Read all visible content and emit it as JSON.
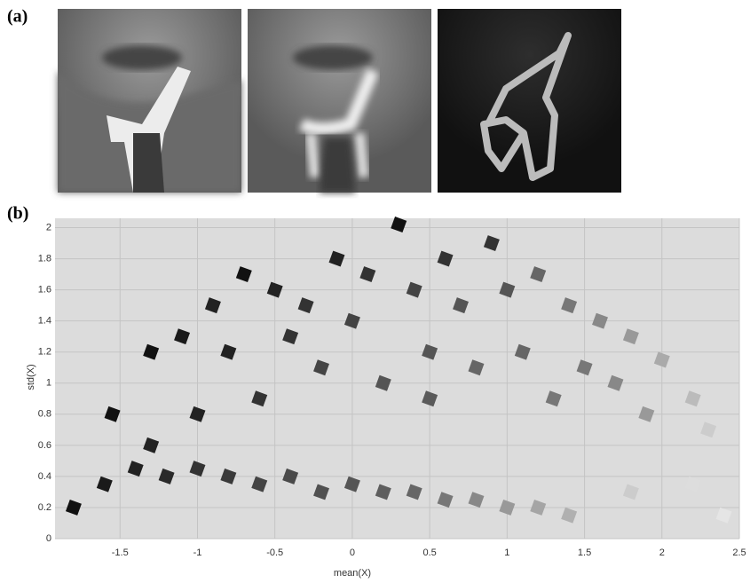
{
  "panel_labels": {
    "a": "(a)",
    "b": "(b)"
  },
  "chart_data": {
    "type": "scatter",
    "xlabel": "mean(X)",
    "ylabel": "std(X)",
    "xlim": [
      -1.92,
      2.5
    ],
    "ylim": [
      0,
      2.06
    ],
    "xticks": [
      -1.5,
      -1,
      -0.5,
      0,
      0.5,
      1,
      1.5,
      2,
      2.5
    ],
    "yticks": [
      0,
      0.2,
      0.4,
      0.6,
      0.8,
      1,
      1.2,
      1.4,
      1.6,
      1.8,
      2
    ],
    "grid": true,
    "x": [
      -1.8,
      -1.6,
      -1.4,
      -1.2,
      -1.0,
      -0.8,
      -0.6,
      -0.4,
      -0.2,
      0,
      0.2,
      0.4,
      0.6,
      0.8,
      1.0,
      1.2,
      1.4,
      1.8,
      2.2,
      2.4,
      -1.55,
      -1.3,
      -1.1,
      -0.9,
      -0.7,
      -0.5,
      -0.3,
      -0.1,
      0.1,
      0.3,
      0.4,
      0.6,
      0.7,
      0.9,
      1.0,
      1.2,
      1.4,
      1.6,
      1.8,
      2.0,
      2.2,
      1.9,
      1.5,
      1.1,
      0.8,
      0.5,
      0.2,
      -0.2,
      -0.6,
      -1.0,
      -1.3,
      -0.8,
      -0.4,
      0.0,
      0.5,
      1.3,
      1.7,
      2.3
    ],
    "values": [
      0.2,
      0.35,
      0.45,
      0.4,
      0.45,
      0.4,
      0.35,
      0.4,
      0.3,
      0.35,
      0.3,
      0.3,
      0.25,
      0.25,
      0.2,
      0.2,
      0.15,
      0.3,
      0.35,
      0.15,
      0.8,
      1.2,
      1.3,
      1.5,
      1.7,
      1.6,
      1.5,
      1.8,
      1.7,
      2.02,
      1.6,
      1.8,
      1.5,
      1.9,
      1.6,
      1.7,
      1.5,
      1.4,
      1.3,
      1.15,
      0.9,
      0.8,
      1.1,
      1.2,
      1.1,
      1.2,
      1.0,
      1.1,
      0.9,
      0.8,
      0.6,
      1.2,
      1.3,
      1.4,
      0.9,
      0.9,
      1.0,
      0.7
    ],
    "point_colors": [
      "#111111",
      "#1a1a1a",
      "#222222",
      "#2a2a2a",
      "#333333",
      "#3a3a3a",
      "#444444",
      "#4a4a4a",
      "#505050",
      "#555555",
      "#5e5e5e",
      "#666666",
      "#777777",
      "#888888",
      "#999999",
      "#a5a5a5",
      "#b0b0b0",
      "#cccccc",
      "#dddddd",
      "#e5e5e5",
      "#111111",
      "#111111",
      "#1a1a1a",
      "#222222",
      "#111111",
      "#222222",
      "#333333",
      "#222222",
      "#333333",
      "#111111",
      "#444444",
      "#333333",
      "#555555",
      "#333333",
      "#555555",
      "#666666",
      "#777777",
      "#888888",
      "#999999",
      "#aaaaaa",
      "#bbbbbb",
      "#999999",
      "#777777",
      "#666666",
      "#666666",
      "#555555",
      "#555555",
      "#444444",
      "#333333",
      "#222222",
      "#222222",
      "#222222",
      "#333333",
      "#444444",
      "#5a5a5a",
      "#777777",
      "#888888",
      "#cccccc"
    ]
  }
}
